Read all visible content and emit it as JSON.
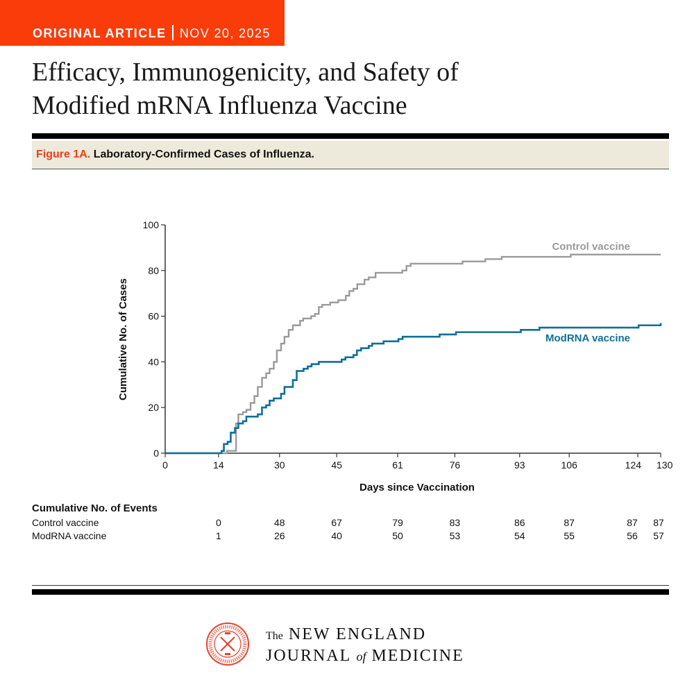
{
  "header": {
    "section": "ORIGINAL ARTICLE",
    "date": "NOV 20, 2025",
    "accent_color": "#fa3c0a"
  },
  "article": {
    "title_line1": "Efficacy, Immunogenicity, and Safety of",
    "title_line2": "Modified mRNA Influenza Vaccine"
  },
  "figure": {
    "label": "Figure 1A.",
    "caption": "Laboratory-Confirmed Cases of Influenza."
  },
  "chart_data": {
    "type": "line",
    "step": true,
    "xlabel": "Days since Vaccination",
    "ylabel": "Cumulative No. of Cases",
    "xlim": [
      0,
      130
    ],
    "ylim": [
      0,
      100
    ],
    "x_ticks": [
      0,
      14,
      30,
      45,
      61,
      76,
      93,
      106,
      124,
      130
    ],
    "y_ticks": [
      0,
      20,
      40,
      60,
      80,
      100
    ],
    "grid": false,
    "legend": "inline labels at right end of each curve",
    "series": [
      {
        "name": "Control vaccine",
        "color": "#9a9a9c",
        "points": [
          [
            0,
            0
          ],
          [
            14.6,
            0
          ],
          [
            16.2,
            1
          ],
          [
            18.6,
            13
          ],
          [
            19.2,
            17
          ],
          [
            20.4,
            18
          ],
          [
            21.3,
            19
          ],
          [
            22.4,
            22
          ],
          [
            23.4,
            25
          ],
          [
            24.3,
            29
          ],
          [
            25.4,
            33
          ],
          [
            26.5,
            35
          ],
          [
            27.4,
            37
          ],
          [
            28.5,
            40
          ],
          [
            29.3,
            45
          ],
          [
            30.4,
            48
          ],
          [
            31.3,
            51
          ],
          [
            32.4,
            54
          ],
          [
            33.5,
            56
          ],
          [
            35.4,
            58
          ],
          [
            36.2,
            59
          ],
          [
            38.3,
            60
          ],
          [
            39.3,
            61
          ],
          [
            40.3,
            64
          ],
          [
            41.2,
            65
          ],
          [
            43.3,
            66
          ],
          [
            45.4,
            67
          ],
          [
            47.4,
            69
          ],
          [
            48.3,
            71
          ],
          [
            49.4,
            72
          ],
          [
            50.4,
            74
          ],
          [
            52.3,
            76
          ],
          [
            53.4,
            77
          ],
          [
            55.2,
            79
          ],
          [
            62.2,
            80
          ],
          [
            63.3,
            82
          ],
          [
            64.4,
            83
          ],
          [
            78,
            84
          ],
          [
            84,
            85
          ],
          [
            88.3,
            86
          ],
          [
            106.4,
            87
          ],
          [
            130,
            87
          ]
        ]
      },
      {
        "name": "ModRNA vaccine",
        "color": "#0f6f99",
        "points": [
          [
            0,
            0
          ],
          [
            14.6,
            0
          ],
          [
            14.8,
            1
          ],
          [
            15.4,
            4
          ],
          [
            16.4,
            5
          ],
          [
            17.2,
            9
          ],
          [
            18.3,
            11
          ],
          [
            19.2,
            13
          ],
          [
            20.4,
            14
          ],
          [
            21.3,
            16
          ],
          [
            24.3,
            17
          ],
          [
            25.4,
            20
          ],
          [
            26.5,
            21
          ],
          [
            27.4,
            23
          ],
          [
            28.5,
            24
          ],
          [
            30.4,
            26
          ],
          [
            31.3,
            29
          ],
          [
            33.5,
            32
          ],
          [
            34.5,
            36
          ],
          [
            36.3,
            37
          ],
          [
            37.4,
            38
          ],
          [
            38.4,
            39
          ],
          [
            40.3,
            40
          ],
          [
            46.3,
            41
          ],
          [
            47.3,
            42
          ],
          [
            49.4,
            43
          ],
          [
            50.3,
            45
          ],
          [
            51.4,
            46
          ],
          [
            53.4,
            47
          ],
          [
            54.3,
            48
          ],
          [
            57.3,
            49
          ],
          [
            61.2,
            50
          ],
          [
            62.3,
            51
          ],
          [
            72,
            52
          ],
          [
            76.3,
            53
          ],
          [
            93.3,
            54
          ],
          [
            98.2,
            55
          ],
          [
            124.2,
            56
          ],
          [
            130,
            57
          ]
        ]
      }
    ]
  },
  "events_table": {
    "title": "Cumulative No. of Events",
    "rows": [
      {
        "label": "Control vaccine",
        "values": [
          "0",
          "48",
          "67",
          "79",
          "83",
          "86",
          "87",
          "87",
          "87"
        ]
      },
      {
        "label": "ModRNA vaccine",
        "values": [
          "1",
          "26",
          "40",
          "50",
          "53",
          "54",
          "55",
          "56",
          "57"
        ]
      }
    ],
    "at_days": [
      14,
      30,
      45,
      61,
      76,
      93,
      106,
      124,
      130
    ]
  },
  "footer": {
    "journal_the": "The",
    "journal_line1": "NEW ENGLAND",
    "journal_journal": "JOURNAL",
    "journal_of": "of",
    "journal_medicine": "MEDICINE",
    "seal_color": "#e8402a"
  }
}
